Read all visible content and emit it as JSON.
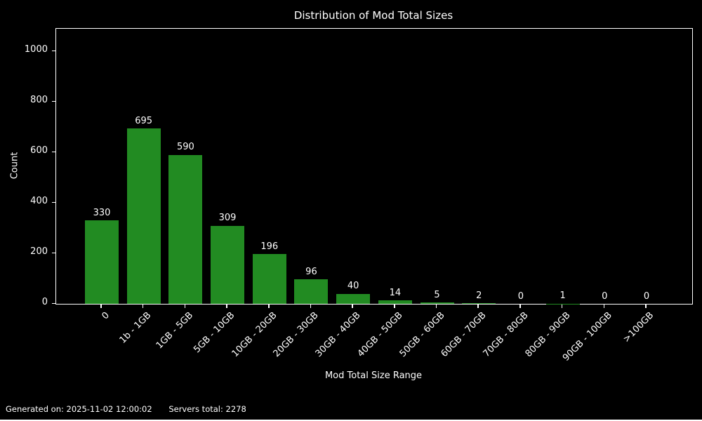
{
  "chart_data": {
    "type": "bar",
    "title": "Distribution of Mod Total Sizes",
    "xlabel": "Mod Total Size Range",
    "ylabel": "Count",
    "categories": [
      "0",
      "1b - 1GB",
      "1GB - 5GB",
      "5GB - 10GB",
      "10GB - 20GB",
      "20GB - 30GB",
      "30GB - 40GB",
      "40GB - 50GB",
      "50GB - 60GB",
      "60GB - 70GB",
      "70GB - 80GB",
      "80GB - 90GB",
      "90GB - 100GB",
      ">100GB"
    ],
    "values": [
      330,
      695,
      590,
      309,
      196,
      96,
      40,
      14,
      5,
      2,
      0,
      1,
      0,
      0
    ],
    "yticks": [
      0,
      200,
      400,
      600,
      800,
      1000
    ],
    "ylim": [
      0,
      1090
    ],
    "value_labels": true,
    "grid": false,
    "legend": null,
    "bar_color": "#228B22",
    "background_color": "#000000",
    "text_color": "#ffffff"
  },
  "footer": {
    "generated": "Generated on: 2025-11-02 12:00:02",
    "servers_total": "Servers total: 2278"
  }
}
